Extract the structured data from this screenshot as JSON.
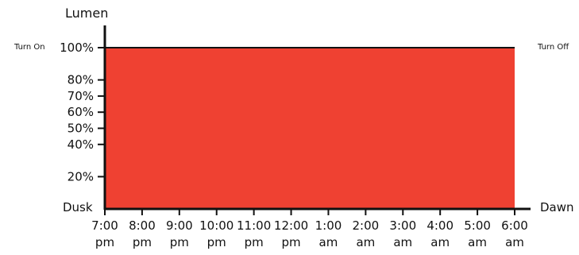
{
  "chart_data": {
    "type": "area",
    "title": "",
    "xlabel": "",
    "ylabel": "Lumen",
    "categories": [
      "7:00 pm",
      "8:00 pm",
      "9:00 pm",
      "10:00 pm",
      "11:00 pm",
      "12:00 pm",
      "1:00 am",
      "2:00 am",
      "3:00 am",
      "4:00 am",
      "5:00 am",
      "6:00 am"
    ],
    "x_tick_labels": [
      {
        "line1": "7:00",
        "line2": "pm"
      },
      {
        "line1": "8:00",
        "line2": "pm"
      },
      {
        "line1": "9:00",
        "line2": "pm"
      },
      {
        "line1": "10:00",
        "line2": "pm"
      },
      {
        "line1": "11:00",
        "line2": "pm"
      },
      {
        "line1": "12:00",
        "line2": "pm"
      },
      {
        "line1": "1:00",
        "line2": "am"
      },
      {
        "line1": "2:00",
        "line2": "am"
      },
      {
        "line1": "3:00",
        "line2": "am"
      },
      {
        "line1": "4:00",
        "line2": "am"
      },
      {
        "line1": "5:00",
        "line2": "am"
      },
      {
        "line1": "6:00",
        "line2": "am"
      }
    ],
    "series": [
      {
        "values": [
          100,
          100,
          100,
          100,
          100,
          100,
          100,
          100,
          100,
          100,
          100,
          100
        ]
      }
    ],
    "y_ticks": [
      100,
      80,
      70,
      60,
      50,
      40,
      20
    ],
    "y_tick_labels": [
      "100%",
      "80%",
      "70%",
      "60%",
      "50%",
      "40%",
      "20%"
    ],
    "ylim": [
      0,
      100
    ],
    "grid": false,
    "legend": "none",
    "annotations": {
      "turn_on": "Turn On",
      "turn_off": "Turn Off",
      "dusk": "Dusk",
      "dawn": "Dawn"
    },
    "colors": {
      "fill": "#ef4132",
      "axis": "#111111",
      "text": "#111111"
    }
  }
}
